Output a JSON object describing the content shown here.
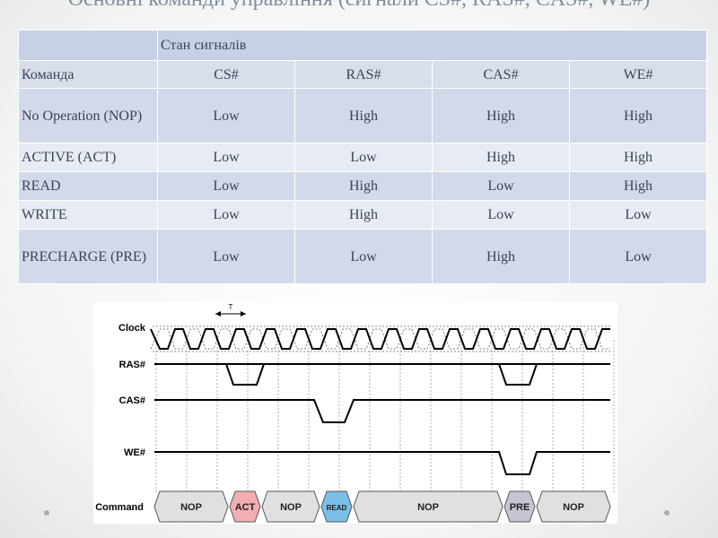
{
  "slide": {
    "title": "Основні команди управління (сигнали CS#, RAS#, CAS#, WE#)"
  },
  "table": {
    "group_header": "Стан сигналів",
    "column_headers": [
      "Команда",
      "CS#",
      "RAS#",
      "CAS#",
      "WE#"
    ],
    "rows": [
      {
        "command": "No Operation (NOP)",
        "values": [
          "Low",
          "High",
          "High",
          "High"
        ]
      },
      {
        "command": "ACTIVE (ACT)",
        "values": [
          "Low",
          "Low",
          "High",
          "High"
        ]
      },
      {
        "command": "READ",
        "values": [
          "Low",
          "High",
          "Low",
          "High"
        ]
      },
      {
        "command": "WRITE",
        "values": [
          "Low",
          "High",
          "Low",
          "Low"
        ]
      },
      {
        "command": "PRECHARGE (PRE)",
        "values": [
          "Low",
          "Low",
          "High",
          "Low"
        ]
      }
    ]
  },
  "timing_diagram": {
    "period_label": "T",
    "signals": [
      "Clock",
      "RAS#",
      "CAS#",
      "WE#",
      "Command"
    ],
    "commands": [
      "NOP",
      "ACT",
      "NOP",
      "READ",
      "NOP",
      "PRE",
      "NOP"
    ],
    "colors": {
      "act": "#f2aeb0",
      "read": "#79bfe9",
      "pre": "#c6c3d3",
      "nop": "#e0e0e0",
      "signal": "#000000",
      "grid": "#9a9a9a"
    }
  }
}
